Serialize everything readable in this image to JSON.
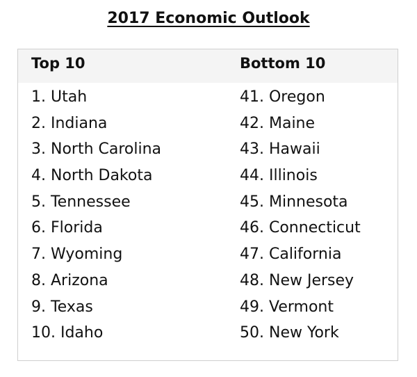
{
  "title": "2017 Economic Outlook",
  "top": {
    "header": "Top 10",
    "items": [
      "1. Utah",
      "2. Indiana",
      "3. North Carolina",
      "4. North Dakota",
      "5. Tennessee",
      "6. Florida",
      "7. Wyoming",
      "8. Arizona",
      "9. Texas",
      "10. Idaho"
    ]
  },
  "bottom": {
    "header": "Bottom 10",
    "items": [
      "41. Oregon",
      "42. Maine",
      "43. Hawaii",
      "44. Illinois",
      "45. Minnesota",
      "46. Connecticut",
      "47. California",
      "48. New Jersey",
      "49. Vermont",
      "50. New York"
    ]
  }
}
